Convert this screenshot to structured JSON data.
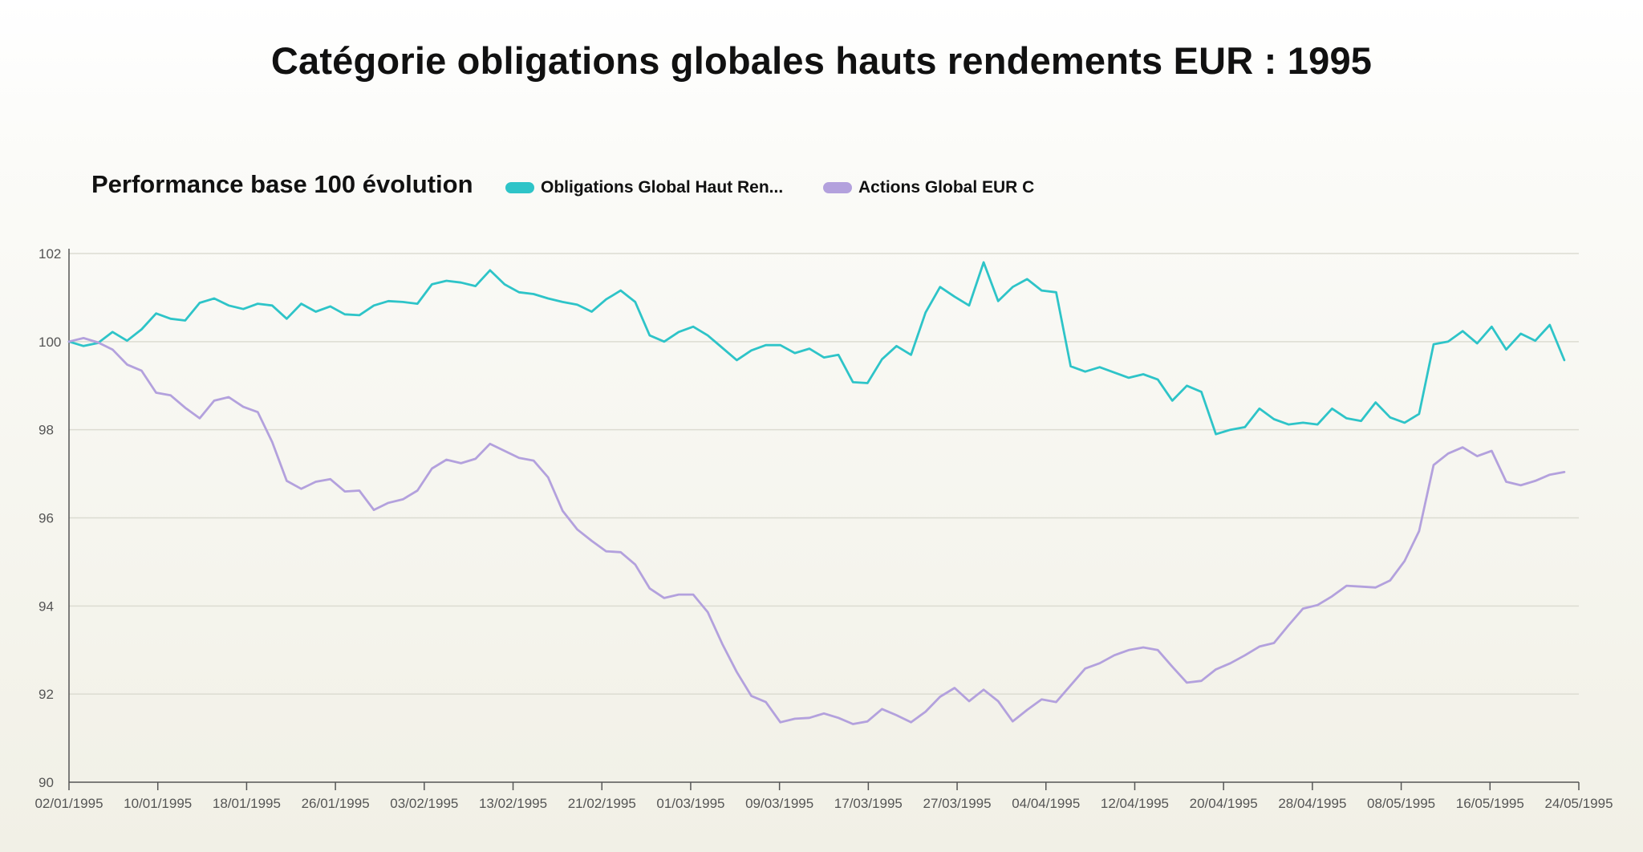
{
  "colors": {
    "series1": "#2ec4c8",
    "series2": "#b3a1dd",
    "grid": "#dcdcd2",
    "axis": "#555555"
  },
  "chart_data": {
    "type": "line",
    "title": "Catégorie obligations globales hauts rendements EUR : 1995",
    "subtitle": "Performance base 100 évolution",
    "ylim": [
      90,
      102
    ],
    "yticks": [
      "90",
      "92",
      "94",
      "96",
      "98",
      "100",
      "102"
    ],
    "xticks": [
      "02/01/1995",
      "10/01/1995",
      "18/01/1995",
      "26/01/1995",
      "03/02/1995",
      "13/02/1995",
      "21/02/1995",
      "01/03/1995",
      "09/03/1995",
      "17/03/1995",
      "27/03/1995",
      "04/04/1995",
      "12/04/1995",
      "20/04/1995",
      "28/04/1995",
      "08/05/1995",
      "16/05/1995",
      "24/05/1995"
    ],
    "x_index_range": [
      0,
      104
    ],
    "series": [
      {
        "name": "Obligations Global Haut Ren...",
        "color": "#2ec4c8",
        "values": [
          100,
          99.9,
          99.97,
          100.22,
          100.02,
          100.28,
          100.64,
          100.52,
          100.48,
          100.88,
          100.98,
          100.82,
          100.74,
          100.86,
          100.82,
          100.52,
          100.86,
          100.68,
          100.8,
          100.62,
          100.6,
          100.82,
          100.92,
          100.9,
          100.86,
          101.3,
          101.38,
          101.34,
          101.26,
          101.62,
          101.3,
          101.12,
          101.08,
          100.98,
          100.9,
          100.84,
          100.68,
          100.96,
          101.16,
          100.9,
          100.14,
          100.0,
          100.22,
          100.34,
          100.14,
          99.86,
          99.58,
          99.8,
          99.92,
          99.92,
          99.74,
          99.84,
          99.64,
          99.7,
          99.08,
          99.06,
          99.6,
          99.9,
          99.7,
          100.66,
          101.24,
          101.02,
          100.82,
          101.8,
          100.92,
          101.24,
          101.42,
          101.16,
          101.12,
          99.44,
          99.32,
          99.42,
          99.3,
          99.18,
          99.26,
          99.14,
          98.66,
          99.0,
          98.86,
          97.9,
          98.0,
          98.06,
          98.48,
          98.24,
          98.12,
          98.16,
          98.12,
          98.48,
          98.26,
          98.2,
          98.62,
          98.28,
          98.16,
          98.36,
          99.94,
          100.0,
          100.24,
          99.96,
          100.34,
          99.82,
          100.18,
          100.02,
          100.38,
          99.58
        ]
      },
      {
        "name": "Actions Global EUR C",
        "color": "#b3a1dd",
        "values": [
          100,
          100.08,
          99.98,
          99.82,
          99.48,
          99.34,
          98.84,
          98.78,
          98.5,
          98.26,
          98.66,
          98.74,
          98.52,
          98.4,
          97.72,
          96.84,
          96.66,
          96.82,
          96.88,
          96.6,
          96.62,
          96.18,
          96.34,
          96.42,
          96.62,
          97.12,
          97.32,
          97.24,
          97.34,
          97.68,
          97.52,
          97.36,
          97.3,
          96.92,
          96.16,
          95.74,
          95.48,
          95.24,
          95.22,
          94.94,
          94.4,
          94.18,
          94.26,
          94.26,
          93.86,
          93.14,
          92.5,
          91.96,
          91.82,
          91.36,
          91.44,
          91.46,
          91.56,
          91.46,
          91.32,
          91.38,
          91.66,
          91.52,
          91.36,
          91.6,
          91.94,
          92.14,
          91.84,
          92.1,
          91.84,
          91.38,
          91.64,
          91.88,
          91.82,
          92.2,
          92.58,
          92.7,
          92.88,
          93.0,
          93.06,
          93.0,
          92.62,
          92.26,
          92.3,
          92.56,
          92.7,
          92.88,
          93.08,
          93.16,
          93.56,
          93.94,
          94.02,
          94.22,
          94.46,
          94.44,
          94.42,
          94.58,
          95.02,
          95.7,
          97.2,
          97.46,
          97.6,
          97.4,
          97.52,
          96.82,
          96.74,
          96.84,
          96.98,
          97.04
        ]
      }
    ]
  }
}
